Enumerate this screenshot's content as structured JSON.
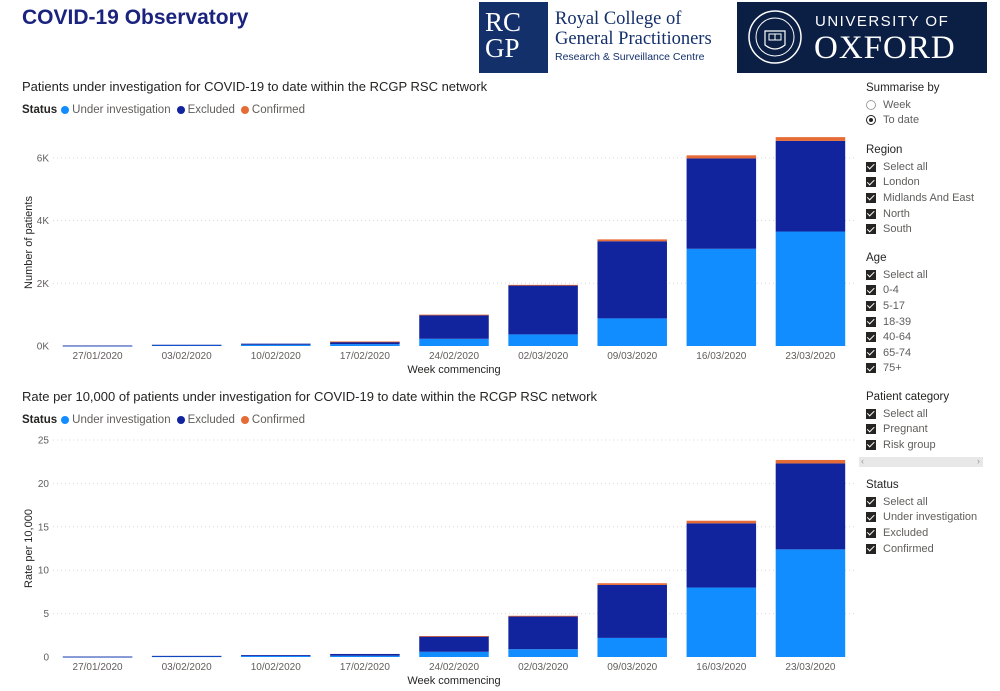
{
  "page": {
    "title": "COVID-19 Observatory"
  },
  "logos": {
    "rcgp": {
      "box_line1": "RCGP",
      "line1": "Royal College of",
      "line2": "General Practitioners",
      "line3": "Research & Surveillance Centre"
    },
    "oxford": {
      "line1": "UNIVERSITY OF",
      "line2": "OXFORD"
    }
  },
  "colors": {
    "under_investigation": "#118dff",
    "excluded": "#12239e",
    "confirmed": "#e66c37"
  },
  "legend": {
    "label": "Status",
    "items": [
      "Under investigation",
      "Excluded",
      "Confirmed"
    ]
  },
  "chart_data": [
    {
      "type": "bar",
      "stacked": true,
      "title": "Patients under investigation for COVID-19 to date within the RCGP RSC network",
      "xlabel": "Week commencing",
      "ylabel": "Number of patients",
      "ylim": [
        0,
        6600
      ],
      "yticks": [
        0,
        2000,
        4000,
        6000
      ],
      "ytick_labels": [
        "0K",
        "2K",
        "4K",
        "6K"
      ],
      "categories": [
        "27/01/2020",
        "03/02/2020",
        "10/02/2020",
        "17/02/2020",
        "24/02/2020",
        "02/03/2020",
        "09/03/2020",
        "16/03/2020",
        "23/03/2020"
      ],
      "series": [
        {
          "name": "Under investigation",
          "values": [
            10,
            25,
            40,
            60,
            230,
            370,
            880,
            3100,
            3650
          ]
        },
        {
          "name": "Excluded",
          "values": [
            5,
            15,
            35,
            80,
            760,
            1560,
            2460,
            2880,
            2890
          ]
        },
        {
          "name": "Confirmed",
          "values": [
            0,
            0,
            0,
            5,
            10,
            20,
            60,
            100,
            120
          ]
        }
      ],
      "legend": "top-left",
      "grid": true
    },
    {
      "type": "bar",
      "stacked": true,
      "title": "Rate per 10,000 of patients under investigation for COVID-19 to date within the RCGP RSC network",
      "xlabel": "Week commencing",
      "ylabel": "Rate per 10,000",
      "ylim": [
        0,
        25
      ],
      "yticks": [
        0,
        5,
        10,
        15,
        20,
        25
      ],
      "ytick_labels": [
        "0",
        "5",
        "10",
        "15",
        "20",
        "25"
      ],
      "categories": [
        "27/01/2020",
        "03/02/2020",
        "10/02/2020",
        "17/02/2020",
        "24/02/2020",
        "02/03/2020",
        "09/03/2020",
        "16/03/2020",
        "23/03/2020"
      ],
      "series": [
        {
          "name": "Under investigation",
          "values": [
            0.03,
            0.08,
            0.12,
            0.15,
            0.6,
            0.9,
            2.2,
            8.0,
            12.4
          ]
        },
        {
          "name": "Excluded",
          "values": [
            0.02,
            0.05,
            0.1,
            0.2,
            1.8,
            3.8,
            6.1,
            7.4,
            9.9
          ]
        },
        {
          "name": "Confirmed",
          "values": [
            0,
            0,
            0,
            0,
            0.02,
            0.05,
            0.2,
            0.3,
            0.4
          ]
        }
      ],
      "legend": "top-left",
      "grid": true
    }
  ],
  "slicers": {
    "summarise": {
      "title": "Summarise by",
      "options": [
        "Week",
        "To date"
      ],
      "selected": "To date"
    },
    "region": {
      "title": "Region",
      "items": [
        "Select all",
        "London",
        "Midlands And East",
        "North",
        "South"
      ]
    },
    "age": {
      "title": "Age",
      "items": [
        "Select all",
        "0-4",
        "5-17",
        "18-39",
        "40-64",
        "65-74",
        "75+"
      ]
    },
    "patient_category": {
      "title": "Patient category",
      "items": [
        "Select all",
        "Pregnant",
        "Risk group"
      ]
    },
    "status": {
      "title": "Status",
      "items": [
        "Select all",
        "Under investigation",
        "Excluded",
        "Confirmed"
      ]
    }
  }
}
